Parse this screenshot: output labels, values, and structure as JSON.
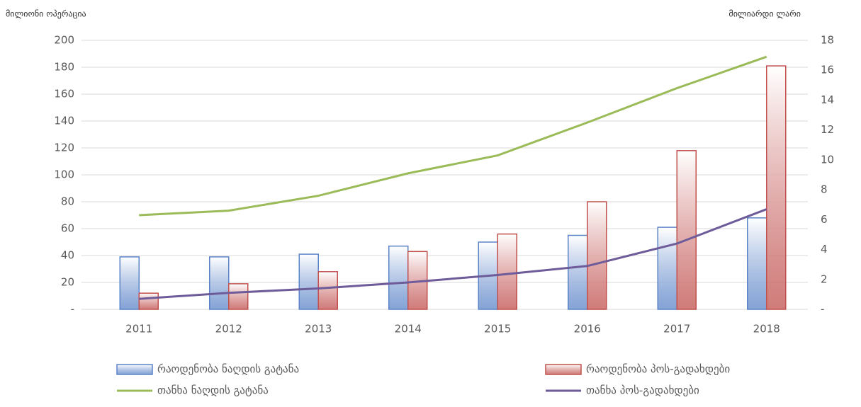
{
  "chart_data": {
    "type": "bar-line",
    "y_label": "მილიონი ოპერაცია",
    "y2_label": "მილიარდი ლარი",
    "categories": [
      "2011",
      "2012",
      "2013",
      "2014",
      "2015",
      "2016",
      "2017",
      "2018"
    ],
    "series": [
      {
        "name": "რაოდენობა ნაღდის გატანა",
        "type": "bar",
        "color": "#5b84c8",
        "values": [
          39,
          39,
          41,
          47,
          50,
          55,
          61,
          68
        ]
      },
      {
        "name": "რაოდენობა პოს-გადახდები",
        "type": "bar",
        "color": "#c0504d",
        "values": [
          12,
          19,
          28,
          43,
          56,
          80,
          118,
          181
        ]
      },
      {
        "name": "თანხა ნაღდის გატანა",
        "type": "line",
        "axis": "y2",
        "color": "#9bbb59",
        "values": [
          6.3,
          6.6,
          7.6,
          9.1,
          10.3,
          12.5,
          14.8,
          16.9
        ]
      },
      {
        "name": "თანხა პოს-გადახდები",
        "type": "line",
        "axis": "y2",
        "color": "#6e5b9a",
        "values": [
          0.7,
          1.1,
          1.4,
          1.8,
          2.3,
          2.9,
          4.4,
          6.7
        ]
      }
    ],
    "ylim": [
      0,
      200
    ],
    "yticks": [
      {
        "value": 0,
        "label": "-"
      },
      20,
      40,
      60,
      80,
      100,
      120,
      140,
      160,
      180,
      200
    ],
    "y2lim": [
      0,
      18
    ],
    "y2ticks": [
      {
        "value": 0,
        "label": "-"
      },
      2,
      4,
      6,
      8,
      10,
      12,
      14,
      16,
      18
    ],
    "grid": true
  }
}
